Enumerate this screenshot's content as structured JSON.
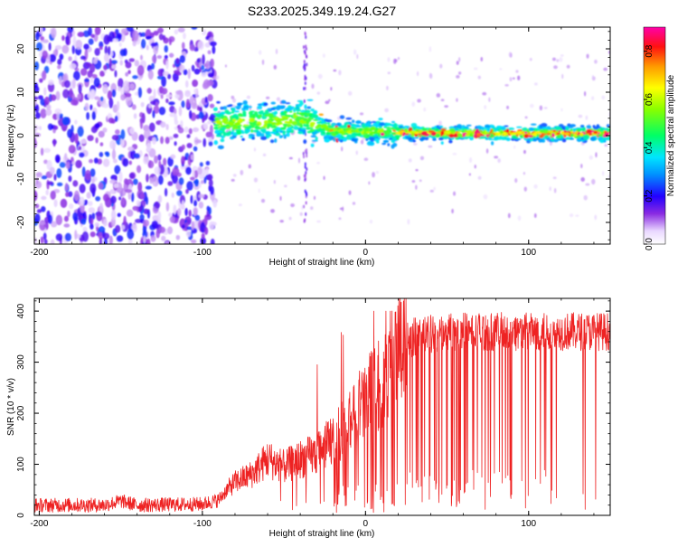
{
  "figure_title": "S233.2025.349.19.24.G27",
  "chart_data": [
    {
      "type": "heatmap",
      "title": "S233.2025.349.19.24.G27",
      "xlabel": "Height of straight line (km)",
      "ylabel": "Frequency (Hz)",
      "xlim": [
        -203,
        150
      ],
      "ylim": [
        -25,
        25
      ],
      "xticks": [
        -200,
        -100,
        0,
        100
      ],
      "xtick_labels": [
        "-200",
        "-100",
        "0",
        "100"
      ],
      "yticks": [
        -20,
        -10,
        0,
        10,
        20
      ],
      "ytick_labels": [
        "-20",
        "-10",
        "0",
        "10",
        "20"
      ],
      "colorbar": {
        "label": "Normalized spectral amplitude",
        "range": [
          0,
          0.9
        ],
        "ticks": [
          0,
          0.2,
          0.4,
          0.6,
          0.8
        ],
        "tick_labels": [
          "0.0",
          "0.2",
          "0.4",
          "0.6",
          "0.8"
        ]
      },
      "regions": [
        {
          "description": "noise",
          "x_range": [
            -203,
            -92
          ],
          "freq_range": [
            -25,
            25
          ],
          "amplitude": [
            0.05,
            0.25
          ]
        },
        {
          "description": "signal band",
          "x_range": [
            -92,
            150
          ],
          "center_freq_hz": [
            3,
            3,
            4,
            1,
            1,
            0.5,
            0.5
          ],
          "center_x_km": [
            -90,
            -60,
            -40,
            -20,
            0,
            50,
            150
          ],
          "amplitude": [
            0.25,
            0.9
          ]
        }
      ]
    },
    {
      "type": "line",
      "xlabel": "Height of straight line (km)",
      "ylabel": "SNR (10 * v/v)",
      "xlim": [
        -203,
        150
      ],
      "ylim": [
        0,
        425
      ],
      "xticks": [
        -200,
        -100,
        0,
        100
      ],
      "xtick_labels": [
        "-200",
        "-100",
        "0",
        "100"
      ],
      "yticks": [
        0,
        100,
        200,
        300,
        400
      ],
      "ytick_labels": [
        "0",
        "100",
        "200",
        "300",
        "400"
      ],
      "series": [
        {
          "name": "SNR",
          "color": "#ee2222",
          "trend_x": [
            -203,
            -160,
            -150,
            -140,
            -100,
            -90,
            -85,
            -80,
            -70,
            -60,
            -50,
            -40,
            -30,
            -20,
            -10,
            0,
            10,
            20,
            25,
            30,
            50,
            100,
            150
          ],
          "trend_y": [
            20,
            20,
            28,
            20,
            22,
            30,
            50,
            65,
            80,
            110,
            95,
            110,
            120,
            150,
            180,
            230,
            260,
            320,
            340,
            350,
            360,
            360,
            360
          ],
          "spike_max": [
            400,
            395,
            405,
            410,
            420
          ]
        }
      ]
    }
  ]
}
